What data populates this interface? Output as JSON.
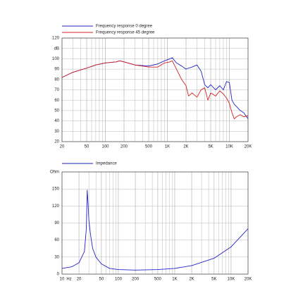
{
  "chart_data": [
    {
      "type": "line",
      "log_x": true,
      "grid": true,
      "x": [
        20,
        30,
        50,
        70,
        100,
        150,
        170,
        200,
        300,
        500,
        700,
        900,
        1100,
        1200,
        1400,
        1700,
        2000,
        2200,
        2500,
        3000,
        3500,
        4000,
        4500,
        5000,
        6000,
        7000,
        8000,
        9000,
        10000,
        11000,
        12000,
        13000,
        15000,
        17000,
        20000
      ],
      "series": [
        {
          "name": "Frequency response 0 degree",
          "color": "#2323c8",
          "values": [
            82,
            87,
            91,
            94,
            96,
            97,
            98,
            97,
            94,
            93,
            95,
            98,
            100,
            101,
            96,
            93,
            90,
            91,
            92,
            94,
            88,
            75,
            72,
            75,
            70,
            74,
            70,
            78,
            77,
            60,
            56,
            54,
            50,
            48,
            42
          ]
        },
        {
          "name": "Frequency response 45 degree",
          "color": "#d42020",
          "values": [
            82,
            87,
            91,
            94,
            96,
            97,
            98,
            97,
            94,
            92,
            92,
            96,
            97,
            98,
            90,
            80,
            74,
            64,
            67,
            63,
            70,
            72,
            60,
            67,
            64,
            69,
            66,
            62,
            57,
            48,
            42,
            44,
            46,
            44,
            45
          ]
        }
      ],
      "xlim": [
        20,
        20000
      ],
      "xticks": [
        20,
        50,
        100,
        200,
        500,
        {
          "value": 1000,
          "label": "1K"
        },
        {
          "value": 2000,
          "label": "2K"
        },
        {
          "value": 5000,
          "label": "5K"
        },
        {
          "value": 10000,
          "label": "10K"
        },
        {
          "value": 20000,
          "label": "20K"
        }
      ],
      "ylim": [
        20,
        120
      ],
      "yticks": [
        20,
        30,
        40,
        50,
        60,
        70,
        80,
        90,
        100,
        {
          "value": 110,
          "label": "dB"
        },
        120
      ]
    },
    {
      "type": "line",
      "log_x": true,
      "grid": true,
      "xlabel": "Hz",
      "x": [
        10,
        15,
        20,
        25,
        27,
        28,
        29,
        30,
        32,
        35,
        40,
        50,
        70,
        100,
        200,
        500,
        1000,
        2000,
        5000,
        10000,
        20000
      ],
      "series": [
        {
          "name": "Impedance",
          "color": "#2323c8",
          "values": [
            10,
            13,
            20,
            40,
            80,
            148,
            125,
            95,
            70,
            45,
            30,
            18,
            10,
            8,
            7,
            8,
            10,
            15,
            28,
            48,
            80
          ]
        }
      ],
      "xlim": [
        10,
        20000
      ],
      "xticks": [
        10,
        20,
        50,
        100,
        200,
        500,
        {
          "value": 1000,
          "label": "1K"
        },
        {
          "value": 2000,
          "label": "2K"
        },
        {
          "value": 5000,
          "label": "5K"
        },
        {
          "value": 10000,
          "label": "10K"
        },
        {
          "value": 20000,
          "label": "20K"
        }
      ],
      "ylim": [
        0,
        180
      ],
      "yticks": [
        0,
        30,
        60,
        90,
        120,
        150,
        {
          "value": 180,
          "label": "Ohm"
        }
      ]
    }
  ]
}
